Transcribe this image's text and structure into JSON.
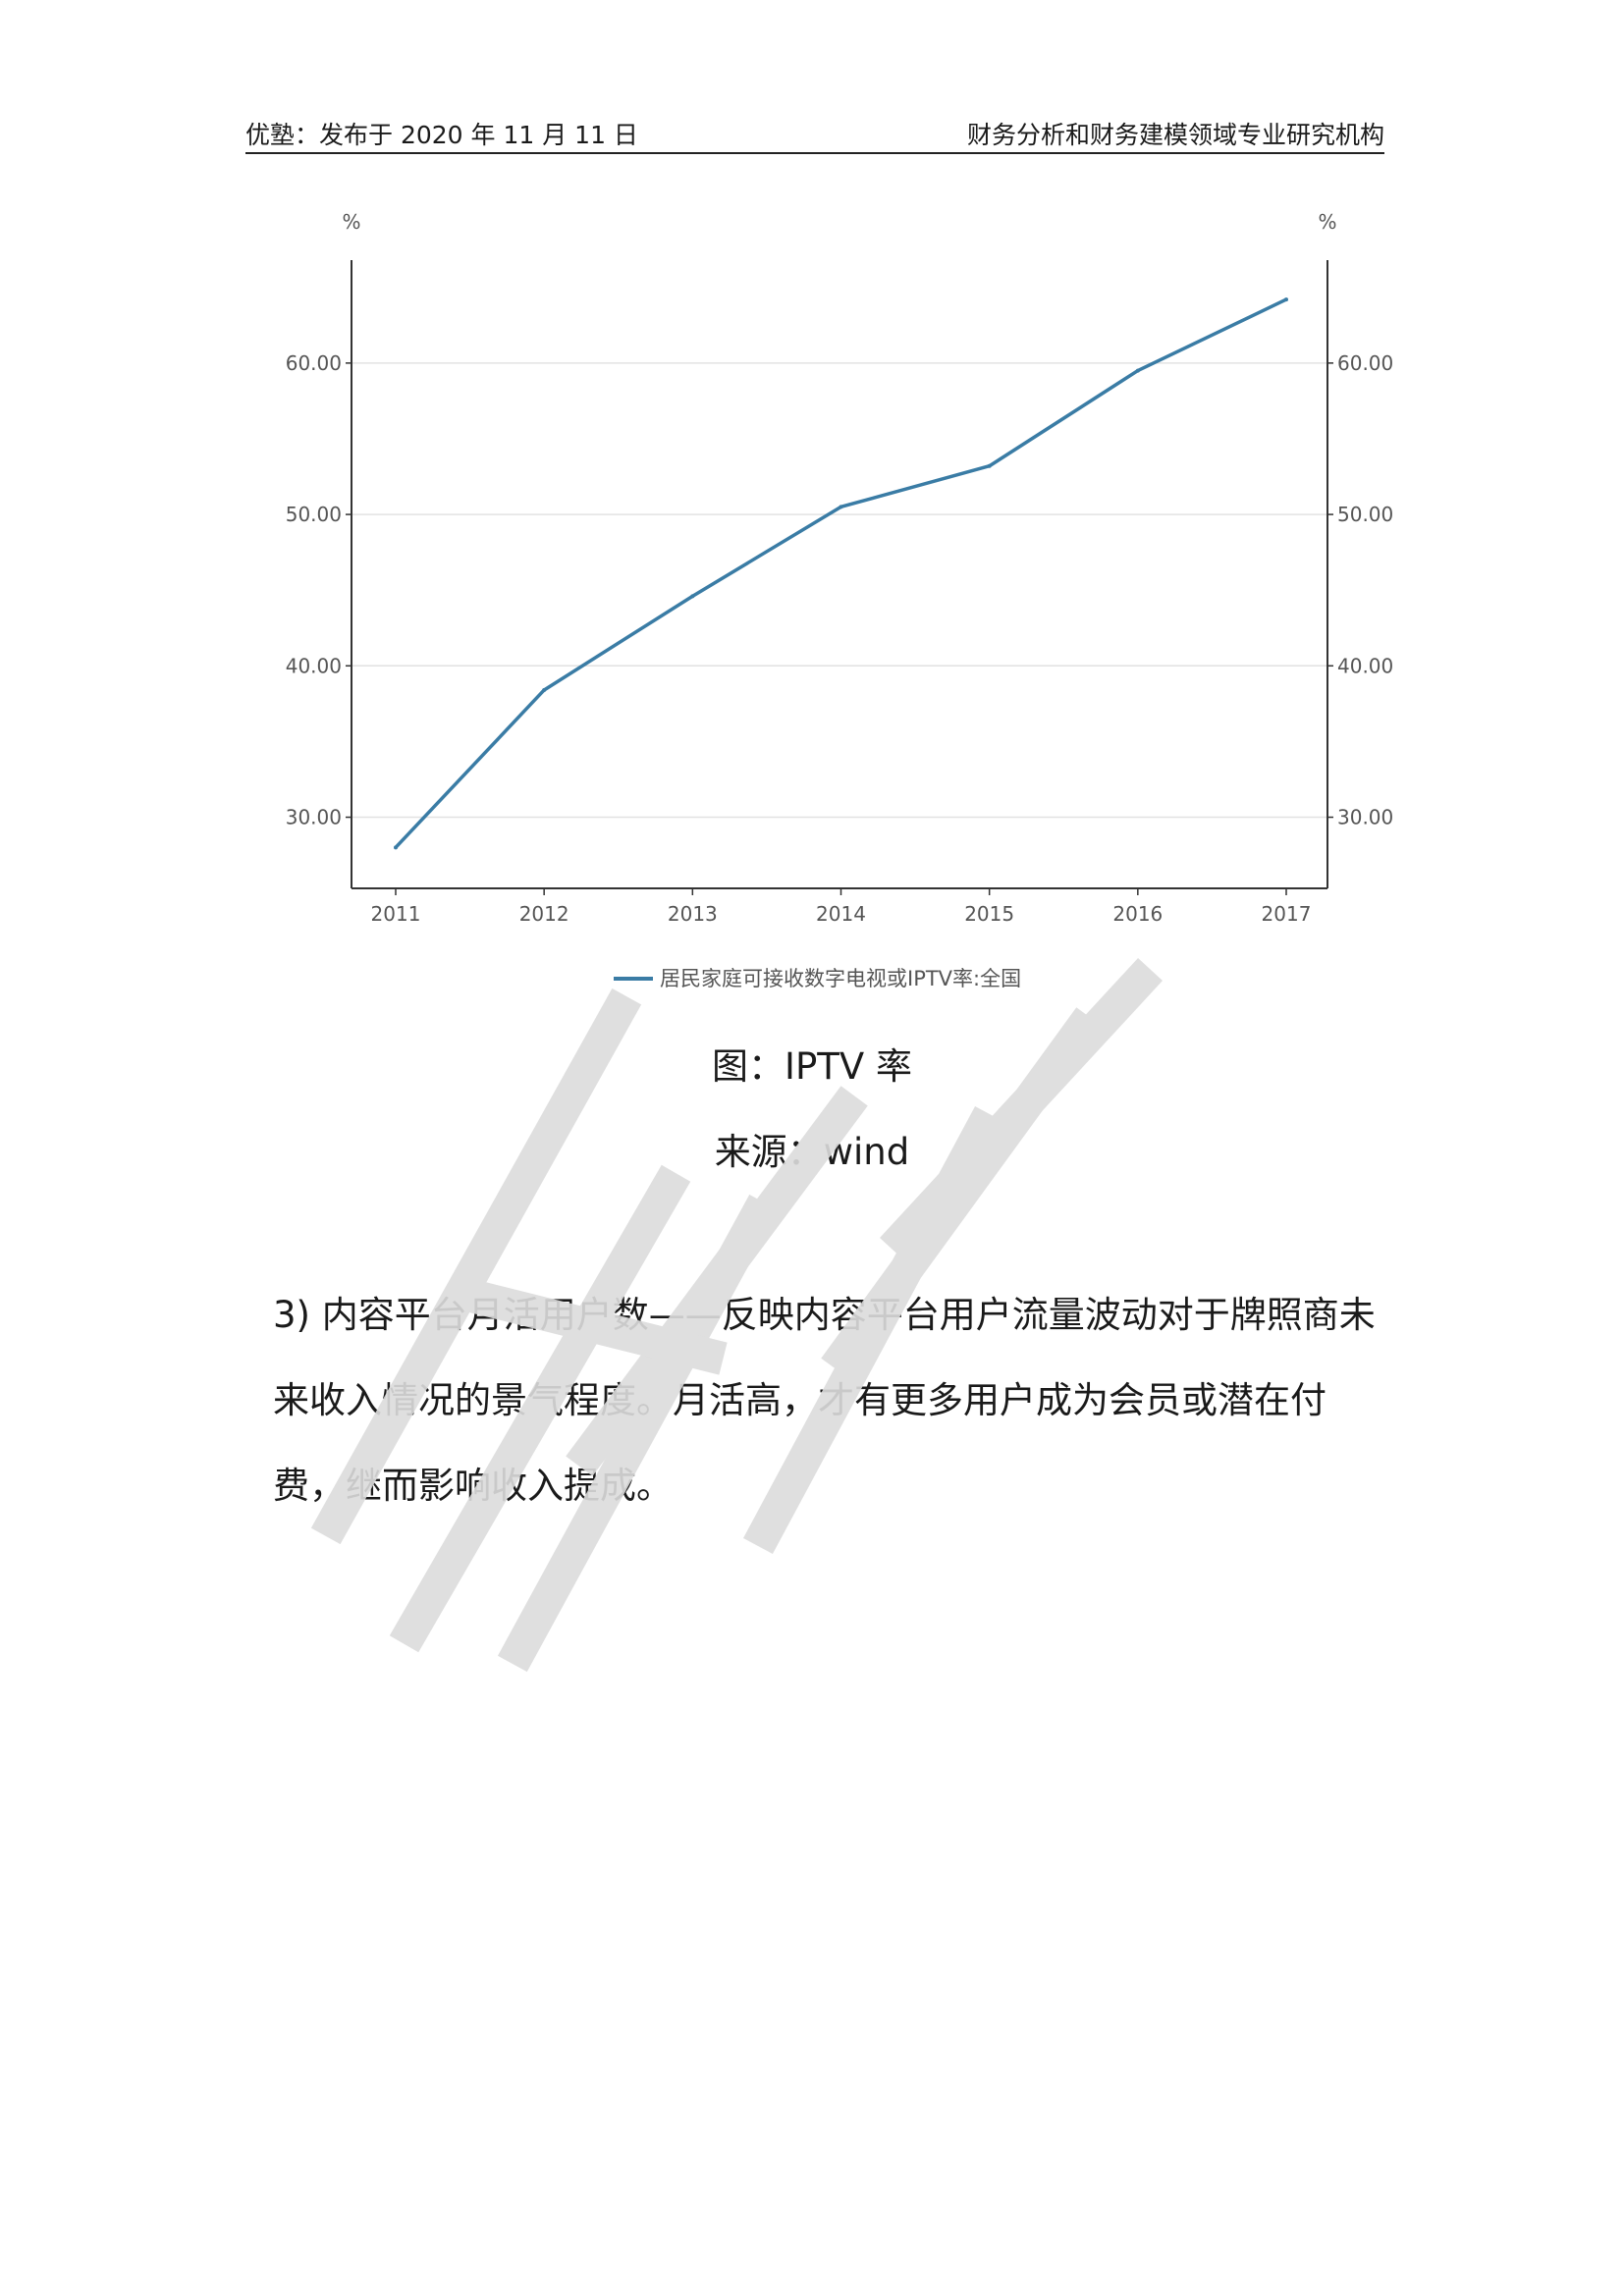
{
  "header": {
    "left": "优塾：发布于 2020 年 11 月 11 日",
    "right": "财务分析和财务建模领域专业研究机构"
  },
  "figure": {
    "caption": "图：IPTV 率",
    "source": "来源：wind"
  },
  "body": {
    "paragraph": "3) 内容平台月活用户数——反映内容平台用户流量波动对于牌照商未来收入情况的景气程度。月活高，才有更多用户成为会员或潜在付费，继而影响收入提成。"
  },
  "chart_data": {
    "type": "line",
    "title": "",
    "x": [
      "2011",
      "2012",
      "2013",
      "2014",
      "2015",
      "2016",
      "2017"
    ],
    "series": [
      {
        "name": "居民家庭可接收数字电视或IPTV率:全国",
        "values": [
          28.0,
          38.4,
          44.6,
          50.5,
          53.2,
          59.5,
          64.2
        ],
        "color": "#3a7ca5"
      }
    ],
    "ylabel_left": "%",
    "ylabel_right": "%",
    "yticks": [
      "30.00",
      "40.00",
      "50.00",
      "60.00"
    ],
    "ylim": [
      25.3,
      66.8
    ],
    "grid": true,
    "legend_position": "bottom"
  }
}
